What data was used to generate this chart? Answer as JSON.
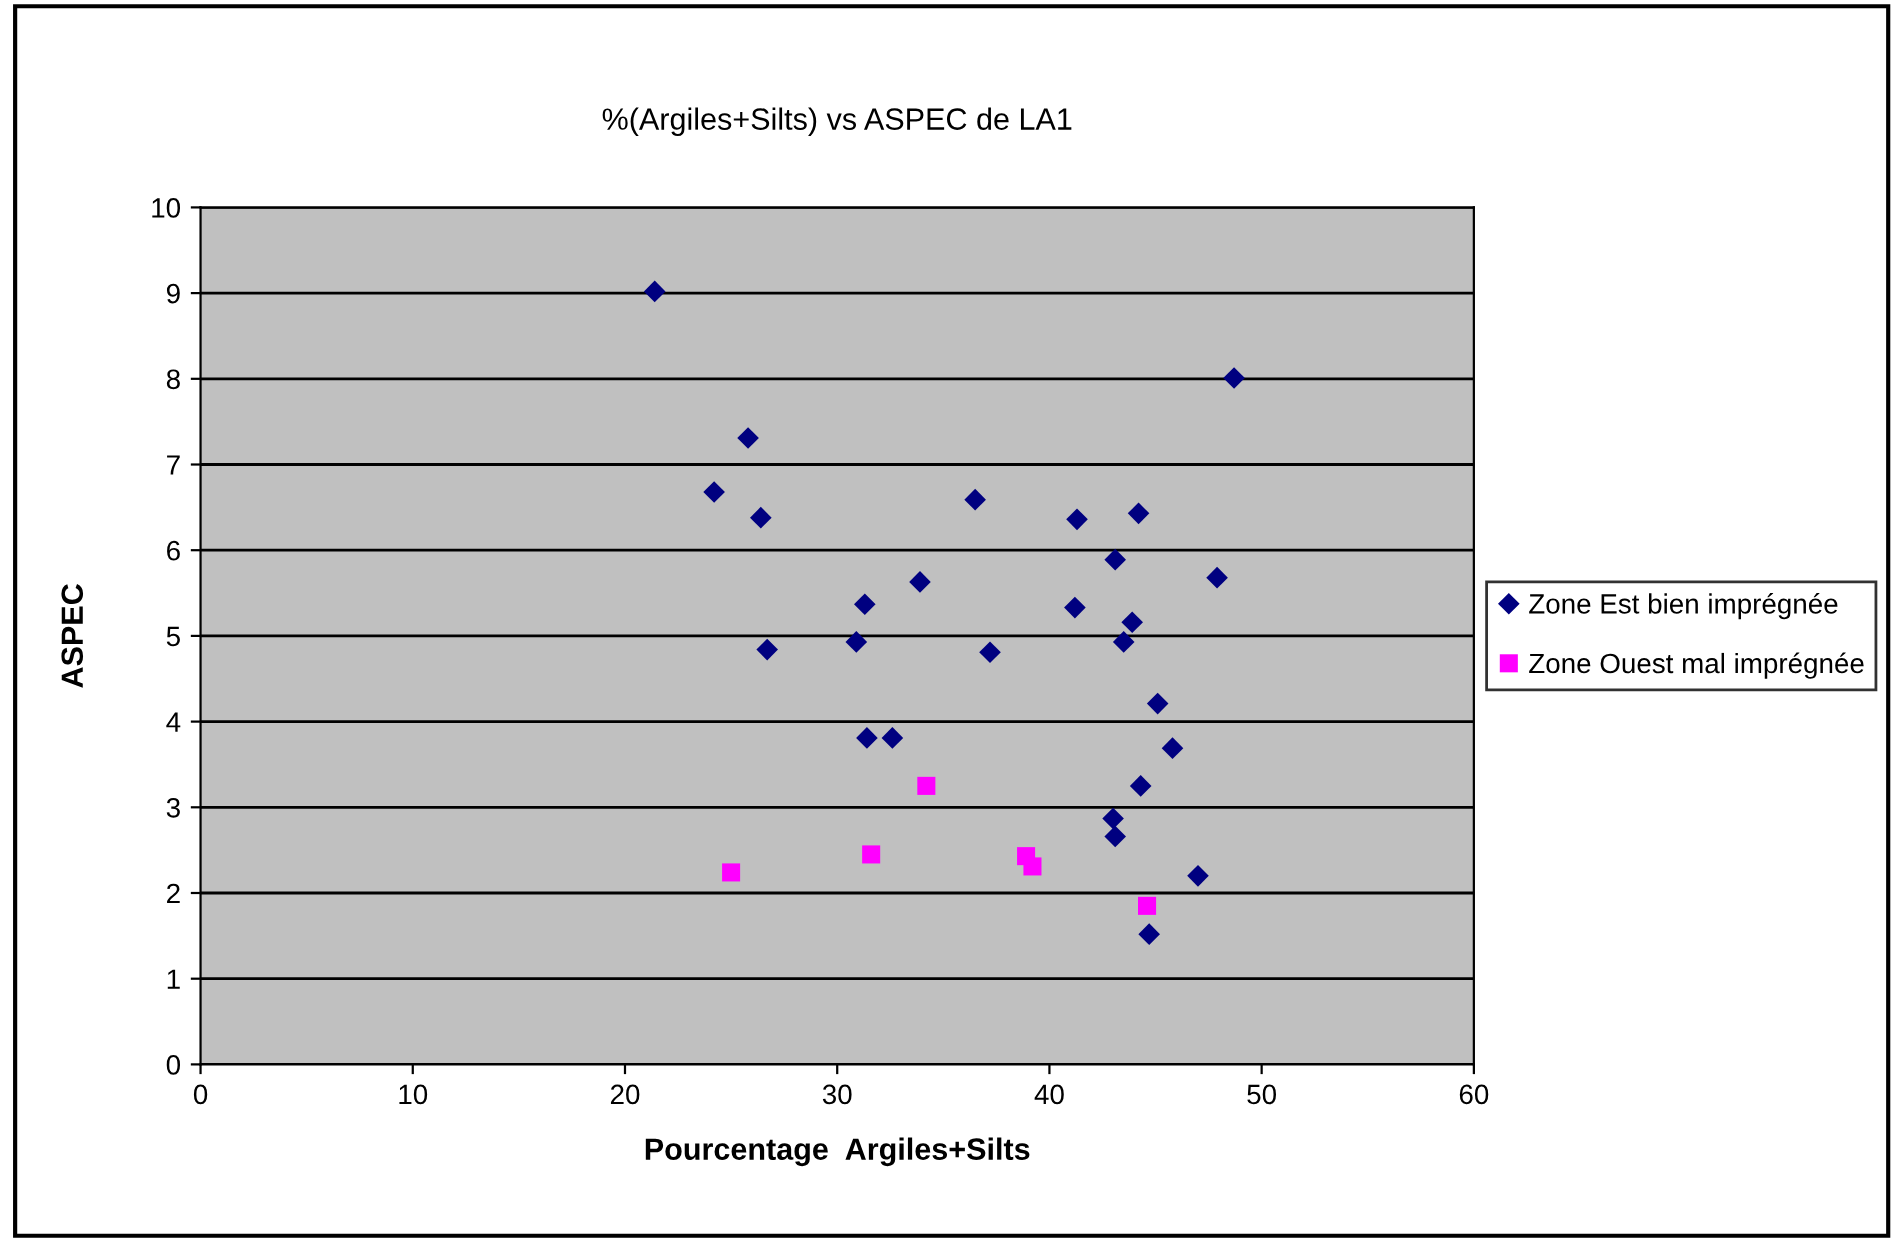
{
  "chart_data": {
    "type": "scatter",
    "title": "%(Argiles+Silts) vs ASPEC de LA1",
    "xlabel": "Pourcentage  Argiles+Silts",
    "ylabel": "ASPEC",
    "xlim": [
      0,
      60
    ],
    "xticks": [
      0,
      10,
      20,
      30,
      40,
      50,
      60
    ],
    "ylim": [
      0,
      10
    ],
    "yticks": [
      0,
      1,
      2,
      3,
      4,
      5,
      6,
      7,
      8,
      9,
      10
    ],
    "grid": "y",
    "legend": "right",
    "series": [
      {
        "name": "Zone Est bien imprégnée",
        "color": "#000080",
        "marker": "diamond",
        "x": [
          21.4,
          48.7,
          25.8,
          24.2,
          26.4,
          36.5,
          41.3,
          44.2,
          43.1,
          47.9,
          33.9,
          31.3,
          41.2,
          43.9,
          26.7,
          30.9,
          37.2,
          43.5,
          45.1,
          45.8,
          31.4,
          32.6,
          44.3,
          43.0,
          43.1,
          47.0,
          44.7
        ],
        "values": [
          9.02,
          8.01,
          7.31,
          6.68,
          6.38,
          6.59,
          6.36,
          6.43,
          5.89,
          5.68,
          5.63,
          5.37,
          5.33,
          5.16,
          4.84,
          4.93,
          4.81,
          4.93,
          4.21,
          3.69,
          3.81,
          3.81,
          3.25,
          2.87,
          2.66,
          2.2,
          1.52
        ]
      },
      {
        "name": "Zone Ouest mal imprégnée",
        "color": "#ff00ff",
        "marker": "square",
        "x": [
          25.0,
          31.6,
          34.2,
          38.9,
          39.2,
          44.6
        ],
        "values": [
          2.24,
          2.45,
          3.25,
          2.43,
          2.31,
          1.85
        ]
      }
    ]
  }
}
